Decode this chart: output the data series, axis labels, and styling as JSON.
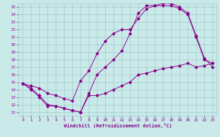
{
  "background_color": "#caeaea",
  "grid_color": "#a0c8c8",
  "line_color": "#880088",
  "xlabel": "Windchill (Refroidissement éolien,°C)",
  "xlim": [
    -0.5,
    23.5
  ],
  "ylim": [
    10.5,
    25.5
  ],
  "xticks": [
    0,
    1,
    2,
    3,
    4,
    5,
    6,
    7,
    8,
    9,
    10,
    11,
    12,
    13,
    14,
    15,
    16,
    17,
    18,
    19,
    20,
    21,
    22,
    23
  ],
  "yticks": [
    11,
    12,
    13,
    14,
    15,
    16,
    17,
    18,
    19,
    20,
    21,
    22,
    23,
    24,
    25
  ],
  "line1_x": [
    0,
    1,
    2,
    3,
    4,
    5,
    6,
    7,
    8,
    9,
    10,
    11,
    12,
    13,
    14,
    15,
    16,
    17,
    18,
    19,
    20,
    21,
    22,
    23
  ],
  "line1_y": [
    14.8,
    14.0,
    13.0,
    11.8,
    11.8,
    11.5,
    11.2,
    11.0,
    13.2,
    13.2,
    13.5,
    14.0,
    14.5,
    15.0,
    16.0,
    16.2,
    16.5,
    16.8,
    17.0,
    17.2,
    17.5,
    17.0,
    17.2,
    17.5
  ],
  "line2_x": [
    0,
    1,
    2,
    3,
    4,
    5,
    6,
    7,
    8,
    9,
    10,
    11,
    12,
    13,
    14,
    15,
    16,
    17,
    18,
    19,
    20,
    21,
    22,
    23
  ],
  "line2_y": [
    14.8,
    14.5,
    14.2,
    13.5,
    13.2,
    12.8,
    12.5,
    15.2,
    16.5,
    18.8,
    20.5,
    21.5,
    22.0,
    22.0,
    23.5,
    24.8,
    25.2,
    25.2,
    25.2,
    24.8,
    24.0,
    21.0,
    18.0,
    17.5
  ],
  "line3_x": [
    0,
    1,
    2,
    3,
    4,
    5,
    6,
    7,
    8,
    9,
    10,
    11,
    12,
    13,
    14,
    15,
    16,
    17,
    18,
    19,
    20,
    21,
    22,
    23
  ],
  "line3_y": [
    14.8,
    14.2,
    13.2,
    12.0,
    11.8,
    11.5,
    11.2,
    11.0,
    13.5,
    16.0,
    17.0,
    18.0,
    19.2,
    21.5,
    24.2,
    25.2,
    25.2,
    25.5,
    25.5,
    25.0,
    24.2,
    21.2,
    18.2,
    17.0
  ]
}
